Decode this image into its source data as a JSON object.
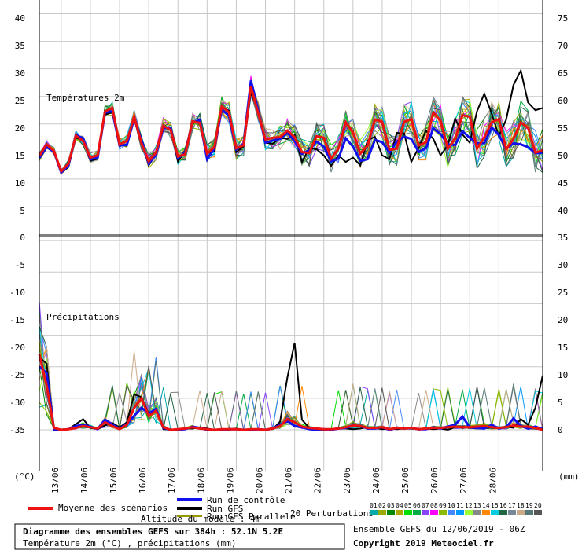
{
  "chart_data": [
    {
      "type": "line",
      "panel": "top",
      "title": "Températures 2m",
      "unit": "(°C)",
      "left_ticks": [
        "40",
        "35",
        "30",
        "25",
        "20",
        "15",
        "10",
        "5",
        "0"
      ],
      "right_ticks": [
        "75",
        "70",
        "65",
        "60",
        "55",
        "50",
        "45",
        "40",
        "35"
      ],
      "ylim": [
        0,
        42.5
      ],
      "x_ticks": [
        "13/06",
        "14/06",
        "15/06",
        "16/06",
        "17/06",
        "18/06",
        "19/06",
        "20/06",
        "21/06",
        "22/06",
        "23/06",
        "24/06",
        "25/06",
        "26/06",
        "27/06",
        "28/06"
      ],
      "x_range_hours": [
        0,
        384
      ],
      "step_hours": 6,
      "series": [
        {
          "name": "Moyenne des scénarios",
          "color": "#ee1111",
          "values": [
            14.2,
            16.3,
            15.1,
            11.4,
            12.8,
            17.9,
            16.9,
            13.9,
            14.3,
            22.3,
            22.9,
            16.3,
            16.9,
            21.3,
            16.5,
            13.2,
            14.8,
            19.7,
            18.9,
            14.1,
            14.5,
            20.5,
            20.2,
            14.6,
            15.8,
            23.2,
            22.1,
            15.6,
            16.1,
            26.8,
            21.9,
            17.2,
            17.5,
            17.6,
            18.8,
            17.6,
            14.9,
            14.7,
            17.8,
            17.5,
            13.7,
            15.5,
            20.3,
            18.5,
            14.6,
            16.1,
            20.8,
            20.4,
            15.3,
            15.5,
            20.4,
            20.9,
            16.1,
            16.7,
            22.1,
            20.6,
            15.5,
            17.3,
            21.6,
            21.3,
            15.5,
            17.6,
            20.3,
            20.9,
            15.4,
            17.3,
            20.3,
            19.3,
            14.8,
            15.2
          ]
        },
        {
          "name": "Run de contrôle",
          "color": "#1111ee",
          "values": [
            13.8,
            15.8,
            15.0,
            11.2,
            12.5,
            18.0,
            17.4,
            13.6,
            13.9,
            22.1,
            22.3,
            16.1,
            16.2,
            21.0,
            17.1,
            12.8,
            14.4,
            19.3,
            19.3,
            13.8,
            14.8,
            20.3,
            20.7,
            13.6,
            15.5,
            22.6,
            21.5,
            15.4,
            16.4,
            27.9,
            22.3,
            16.6,
            17.0,
            17.3,
            18.4,
            16.9,
            14.6,
            15.2,
            16.8,
            15.9,
            13.2,
            13.7,
            17.4,
            15.9,
            13.3,
            13.6,
            17.1,
            16.7,
            14.8,
            16.8,
            17.7,
            17.3,
            14.9,
            15.6,
            19.2,
            18.2,
            16.3,
            16.2,
            18.7,
            17.5,
            16.5,
            16.5,
            19.4,
            18.0,
            15.5,
            16.5,
            16.3,
            15.8,
            14.7,
            14.8
          ]
        },
        {
          "name": "Run GFS",
          "color": "#000000",
          "values": [
            14.4,
            16.4,
            14.8,
            11.1,
            12.2,
            17.5,
            17.1,
            13.3,
            13.7,
            21.7,
            22.1,
            16.4,
            16.0,
            20.8,
            16.9,
            12.5,
            14.6,
            19.4,
            19.4,
            13.2,
            15.1,
            20.1,
            20.7,
            14.7,
            15.0,
            23.0,
            22.4,
            14.9,
            15.9,
            25.8,
            22.3,
            16.6,
            16.4,
            17.5,
            17.3,
            18.0,
            13.1,
            15.6,
            15.4,
            14.3,
            12.4,
            14.3,
            13.1,
            13.9,
            12.5,
            17.0,
            17.7,
            14.3,
            13.6,
            18.4,
            18.3,
            13.1,
            15.7,
            18.8,
            17.3,
            14.3,
            16.1,
            21.0,
            18.1,
            16.6,
            22.3,
            25.5,
            21.9,
            17.8,
            20.8,
            27.1,
            29.7,
            23.9,
            22.5,
            22.9
          ]
        },
        {
          "name": "Run GFS Parallele",
          "color": "#999900",
          "values": [
            13.3,
            15.5,
            15.5,
            11.2,
            12.4,
            17.4,
            16.9,
            13.5,
            14.7,
            21.5,
            21.6,
            16.8,
            16.1,
            20.5,
            17.2,
            12.6,
            14.6,
            19.8,
            18.9,
            13.2,
            14.0,
            20.3,
            19.6,
            15.0,
            16.2,
            22.0,
            21.9,
            15.8,
            15.8,
            26.4,
            22.4,
            16.5,
            17.3,
            18.0,
            18.1,
            17.3,
            15.7,
            14.9,
            17.2,
            16.8,
            13.0,
            15.7,
            20.0,
            18.0,
            14.9,
            16.4,
            20.4,
            20.8,
            14.5,
            15.9,
            20.4,
            20.6,
            15.5,
            16.3,
            21.4,
            20.8,
            15.4,
            17.9,
            21.0,
            21.9,
            16.2,
            17.0,
            20.9,
            20.2,
            15.6,
            17.9,
            20.3,
            19.7,
            14.9,
            14.5
          ]
        }
      ]
    },
    {
      "type": "line",
      "panel": "bottom",
      "title": "Précipitations",
      "unit": "(mm)",
      "left_ticks": [
        "-5",
        "-10",
        "-15",
        "-20",
        "-25",
        "-30",
        "-35"
      ],
      "right_ticks": [
        "30",
        "25",
        "20",
        "15",
        "10",
        "5",
        "0"
      ],
      "ylim": [
        -5,
        35
      ],
      "x_ticks": [
        "13/06",
        "14/06",
        "15/06",
        "16/06",
        "17/06",
        "18/06",
        "19/06",
        "20/06",
        "21/06",
        "22/06",
        "23/06",
        "24/06",
        "25/06",
        "26/06",
        "27/06",
        "28/06"
      ],
      "series": [
        {
          "name": "Moyenne des scénarios",
          "color": "#ee1111",
          "values": [
            12.0,
            7.0,
            0.3,
            0.0,
            0.1,
            0.3,
            0.6,
            0.4,
            0.2,
            1.2,
            0.6,
            0.1,
            0.8,
            3.5,
            5.0,
            2.2,
            3.0,
            0.4,
            0.0,
            0.1,
            0.2,
            0.4,
            0.2,
            0.1,
            0.0,
            0.1,
            0.1,
            0.1,
            0.0,
            0.1,
            0.1,
            0.0,
            0.2,
            0.6,
            1.7,
            1.2,
            0.5,
            0.3,
            0.2,
            0.1,
            0.1,
            0.2,
            0.4,
            0.7,
            0.6,
            0.3,
            0.3,
            0.4,
            0.1,
            0.3,
            0.2,
            0.3,
            0.1,
            0.2,
            0.3,
            0.3,
            0.4,
            0.5,
            0.4,
            0.4,
            0.5,
            0.6,
            0.4,
            0.3,
            0.4,
            0.7,
            0.5,
            0.5,
            0.3,
            0.0
          ]
        },
        {
          "name": "Run de contrôle",
          "color": "#1111ee",
          "values": [
            10.0,
            9.0,
            0.1,
            0.0,
            0.1,
            0.6,
            0.8,
            0.5,
            0.1,
            1.6,
            0.8,
            0.2,
            0.9,
            2.2,
            3.5,
            2.6,
            3.3,
            0.3,
            0.0,
            0.0,
            0.1,
            0.5,
            0.3,
            0.0,
            0.0,
            0.0,
            0.1,
            0.1,
            0.0,
            0.0,
            0.1,
            0.0,
            0.2,
            0.8,
            1.4,
            0.6,
            0.4,
            0.1,
            0.0,
            0.1,
            0.0,
            0.2,
            0.3,
            0.7,
            0.6,
            0.2,
            0.2,
            0.4,
            0.0,
            0.3,
            0.2,
            0.3,
            0.1,
            0.1,
            0.4,
            0.2,
            0.5,
            0.8,
            2.1,
            0.4,
            0.3,
            0.2,
            0.8,
            0.2,
            0.4,
            1.8,
            0.6,
            0.2,
            0.5,
            0.1
          ]
        },
        {
          "name": "Run GFS",
          "color": "#000000",
          "values": [
            11.5,
            10.5,
            0.0,
            0.0,
            0.1,
            0.9,
            1.7,
            0.3,
            0.1,
            0.7,
            1.1,
            0.4,
            1.2,
            5.6,
            5.2,
            2.5,
            3.1,
            0.1,
            0.0,
            0.1,
            0.2,
            0.2,
            0.4,
            0.2,
            0.0,
            0.0,
            0.0,
            0.2,
            0.0,
            0.0,
            0.1,
            0.0,
            0.1,
            1.3,
            8.3,
            13.8,
            1.6,
            0.3,
            0.2,
            0.0,
            0.0,
            0.3,
            0.2,
            0.1,
            0.2,
            0.4,
            0.3,
            0.1,
            0.2,
            0.1,
            0.2,
            0.4,
            0.0,
            0.2,
            0.1,
            0.2,
            0.0,
            0.4,
            0.5,
            0.3,
            0.2,
            0.3,
            0.4,
            0.2,
            0.5,
            0.3,
            1.7,
            0.8,
            3.5,
            8.6
          ]
        },
        {
          "name": "Run GFS Parallele",
          "color": "#999900",
          "values": [
            12.8,
            9.2,
            0.4,
            0.0,
            0.2,
            0.8,
            0.5,
            0.4,
            0.3,
            1.0,
            0.4,
            0.1,
            0.6,
            3.8,
            5.5,
            1.9,
            2.7,
            0.5,
            0.0,
            0.1,
            0.2,
            0.7,
            0.1,
            0.0,
            0.1,
            0.2,
            0.1,
            0.3,
            0.0,
            0.1,
            0.2,
            0.1,
            0.4,
            0.3,
            1.2,
            1.9,
            0.5,
            0.3,
            0.2,
            0.1,
            0.1,
            0.3,
            0.6,
            1.3,
            0.6,
            0.2,
            0.4,
            0.6,
            0.2,
            0.4,
            0.3,
            0.3,
            0.1,
            0.2,
            0.6,
            0.4,
            0.3,
            0.5,
            0.5,
            0.6,
            0.8,
            0.9,
            0.3,
            0.2,
            0.4,
            0.6,
            0.4,
            0.7,
            0.2,
            0.0
          ]
        }
      ]
    }
  ],
  "legend": {
    "mean_label": "Moyenne des scénarios",
    "control_label": "Run de contrôle",
    "gfs_label": "Run GFS",
    "gfs_par_label": "Run GFS Parallele",
    "perturb_label": "20 Perturbations",
    "altitude_label": "Altitude du modèle : 4m",
    "perturb_numbers": [
      "01",
      "02",
      "03",
      "04",
      "05",
      "06",
      "07",
      "08",
      "09",
      "10",
      "11",
      "12",
      "13",
      "14",
      "15",
      "16",
      "17",
      "18",
      "19",
      "20"
    ],
    "perturb_colors": [
      "#00aaaa",
      "#99aa00",
      "#008800",
      "#aaaa00",
      "#00dd00",
      "#00aa44",
      "#8844ff",
      "#ff00ff",
      "#88bb00",
      "#4488ff",
      "#0099ff",
      "#99ff33",
      "#888888",
      "#ff8800",
      "#00ccdd",
      "#226644",
      "#778899",
      "#ccaa88",
      "#557777",
      "#555555"
    ]
  },
  "footer": {
    "title": "Diagramme des ensembles GEFS sur 384h : 52.1N 5.2E",
    "subtitle": "Température 2m (°C) , précipitations (mm)",
    "ensemble": "Ensemble GEFS du 12/06/2019 - 06Z",
    "copyright": "Copyright 2019 Meteociel.fr"
  }
}
